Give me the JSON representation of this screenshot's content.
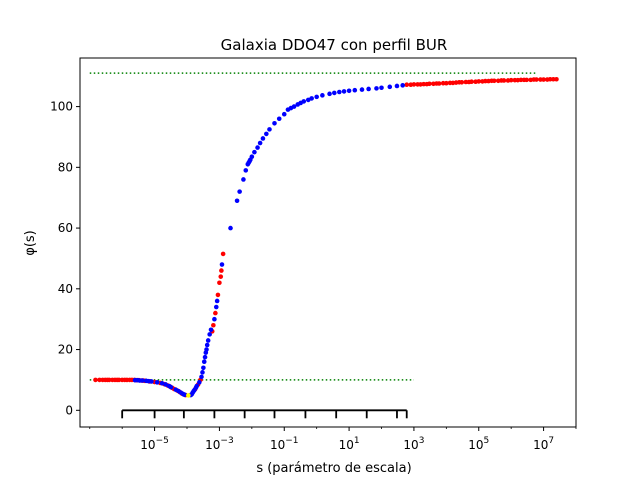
{
  "chart_data": {
    "type": "scatter",
    "title": "Galaxia DDO47 con perfil BUR",
    "xlabel": "s (parámetro de escala)",
    "ylabel": "φ(s)",
    "xscale": "log",
    "xlim": [
      5e-08,
      100000000.0
    ],
    "ylim": [
      -5.5,
      116
    ],
    "yticks": [
      0,
      20,
      40,
      60,
      80,
      100
    ],
    "xticks": [
      {
        "value": 1e-05,
        "base": "10",
        "exp": "−5"
      },
      {
        "value": 0.001,
        "base": "10",
        "exp": "−3"
      },
      {
        "value": 0.1,
        "base": "10",
        "exp": "−1"
      },
      {
        "value": 10.0,
        "base": "10",
        "exp": "1"
      },
      {
        "value": 1000.0,
        "base": "10",
        "exp": "3"
      },
      {
        "value": 100000.0,
        "base": "10",
        "exp": "5"
      },
      {
        "value": 10000000.0,
        "base": "10",
        "exp": "7"
      }
    ],
    "grid": false,
    "reference_lines": [
      {
        "y": 111,
        "x_from": 1e-07,
        "x_to": 6000000.0,
        "style": "dotted",
        "color": "#008000"
      },
      {
        "y": 10,
        "x_from": 1e-07,
        "x_to": 1000.0,
        "style": "dotted",
        "color": "#008000"
      }
    ],
    "bracket": {
      "y": 0,
      "x_from": 1e-06,
      "x_to": 600.0,
      "ticks": [
        1e-06,
        1e-05,
        8e-05,
        0.0007,
        0.006,
        0.05,
        0.45,
        4,
        35.0,
        300.0,
        600.0
      ],
      "color": "#000000"
    },
    "series": [
      {
        "color": "#ff0000",
        "points": [
          [
            1.5e-07,
            10
          ],
          [
            2e-07,
            10
          ],
          [
            2.5e-07,
            10
          ],
          [
            3e-07,
            10
          ],
          [
            3.5e-07,
            10
          ],
          [
            4e-07,
            10
          ],
          [
            5e-07,
            10
          ],
          [
            6e-07,
            10
          ],
          [
            7e-07,
            10
          ],
          [
            8e-07,
            10
          ],
          [
            1e-06,
            10
          ],
          [
            1.2e-06,
            10
          ],
          [
            1.4e-06,
            10
          ],
          [
            1.7e-06,
            10
          ],
          [
            2e-06,
            10
          ],
          [
            2.4e-06,
            10
          ],
          [
            2.8e-06,
            9.9
          ],
          [
            3.3e-06,
            9.9
          ],
          [
            4e-06,
            9.8
          ],
          [
            4.5e-06,
            9.8
          ],
          [
            5e-06,
            9.7
          ],
          [
            7e-06,
            9.5
          ],
          [
            1e-05,
            9.3
          ],
          [
            1.5e-05,
            9.0
          ],
          [
            2e-05,
            8.6
          ],
          [
            2.5e-05,
            8.2
          ],
          [
            3e-05,
            7.8
          ],
          [
            3.5e-05,
            7.4
          ],
          [
            4e-05,
            7.0
          ],
          [
            5e-05,
            6.5
          ],
          [
            6e-05,
            6.0
          ],
          [
            7e-05,
            5.5
          ],
          [
            9e-05,
            5.0
          ],
          [
            0.00018,
            7.0
          ],
          [
            0.00022,
            8.5
          ],
          [
            0.00026,
            10.0
          ],
          [
            0.0006,
            26
          ],
          [
            0.00065,
            28
          ],
          [
            0.00075,
            32
          ],
          [
            0.0009,
            38
          ],
          [
            0.001,
            42
          ],
          [
            0.0011,
            44
          ],
          [
            0.00115,
            46
          ],
          [
            0.0013,
            51.5
          ],
          [
            600.0,
            107.2
          ],
          [
            800.0,
            107.2
          ],
          [
            1000.0,
            107.3
          ],
          [
            1300.0,
            107.3
          ],
          [
            1600.0,
            107.3
          ],
          [
            2000.0,
            107.4
          ],
          [
            2500.0,
            107.4
          ],
          [
            3000.0,
            107.5
          ],
          [
            4000.0,
            107.5
          ],
          [
            5000.0,
            107.6
          ],
          [
            6000.0,
            107.6
          ],
          [
            8000.0,
            107.7
          ],
          [
            10000.0,
            107.7
          ],
          [
            13000.0,
            107.8
          ],
          [
            16000.0,
            107.8
          ],
          [
            20000.0,
            107.9
          ],
          [
            25000.0,
            108.0
          ],
          [
            30000.0,
            108.0
          ],
          [
            40000.0,
            108.1
          ],
          [
            50000.0,
            108.1
          ],
          [
            60000.0,
            108.2
          ],
          [
            80000.0,
            108.2
          ],
          [
            100000.0,
            108.3
          ],
          [
            130000.0,
            108.3
          ],
          [
            160000.0,
            108.4
          ],
          [
            200000.0,
            108.4
          ],
          [
            250000.0,
            108.5
          ],
          [
            300000.0,
            108.5
          ],
          [
            400000.0,
            108.5
          ],
          [
            500000.0,
            108.6
          ],
          [
            600000.0,
            108.6
          ],
          [
            800000.0,
            108.6
          ],
          [
            1000000.0,
            108.7
          ],
          [
            1300000.0,
            108.7
          ],
          [
            1600000.0,
            108.7
          ],
          [
            2000000.0,
            108.8
          ],
          [
            2500000.0,
            108.8
          ],
          [
            3000000.0,
            108.8
          ],
          [
            4000000.0,
            108.8
          ],
          [
            5000000.0,
            108.9
          ],
          [
            6000000.0,
            108.9
          ],
          [
            8000000.0,
            108.9
          ],
          [
            10000000.0,
            108.9
          ],
          [
            13000000.0,
            108.9
          ],
          [
            16000000.0,
            109.0
          ],
          [
            20000000.0,
            109.0
          ],
          [
            25000000.0,
            109.0
          ]
        ]
      },
      {
        "color": "#0000ff",
        "points": [
          [
            2.5e-06,
            9.9
          ],
          [
            3e-06,
            9.9
          ],
          [
            3.5e-06,
            9.8
          ],
          [
            4.2e-06,
            9.8
          ],
          [
            5.5e-06,
            9.7
          ],
          [
            6.5e-06,
            9.6
          ],
          [
            8e-06,
            9.5
          ],
          [
            1.2e-05,
            9.2
          ],
          [
            1.7e-05,
            8.9
          ],
          [
            2.2e-05,
            8.5
          ],
          [
            2.8e-05,
            8.0
          ],
          [
            3.2e-05,
            7.6
          ],
          [
            4.5e-05,
            6.8
          ],
          [
            5.5e-05,
            6.3
          ],
          [
            6.5e-05,
            5.8
          ],
          [
            7.5e-05,
            5.4
          ],
          [
            8e-05,
            5.2
          ],
          [
            8.5e-05,
            5.1
          ],
          [
            0.00013,
            5.0
          ],
          [
            0.00014,
            5.3
          ],
          [
            0.00015,
            5.8
          ],
          [
            0.00016,
            6.3
          ],
          [
            0.00017,
            6.7
          ],
          [
            0.00019,
            7.5
          ],
          [
            0.0002,
            8.0
          ],
          [
            0.00024,
            9.2
          ],
          [
            0.00028,
            11
          ],
          [
            0.0003,
            12.5
          ],
          [
            0.00032,
            14
          ],
          [
            0.00034,
            16
          ],
          [
            0.00036,
            17.5
          ],
          [
            0.00038,
            19
          ],
          [
            0.0004,
            20
          ],
          [
            0.00042,
            21.5
          ],
          [
            0.00045,
            23
          ],
          [
            0.0005,
            25
          ],
          [
            0.00055,
            26.5
          ],
          [
            0.0007,
            30
          ],
          [
            0.0008,
            34
          ],
          [
            0.00085,
            36
          ],
          [
            0.0012,
            48
          ],
          [
            0.0022,
            60
          ],
          [
            0.0035,
            69
          ],
          [
            0.0042,
            72
          ],
          [
            0.0055,
            76
          ],
          [
            0.0065,
            79
          ],
          [
            0.0075,
            81
          ],
          [
            0.008,
            81.5
          ],
          [
            0.0085,
            82
          ],
          [
            0.009,
            82.5
          ],
          [
            0.01,
            83.5
          ],
          [
            0.012,
            85
          ],
          [
            0.015,
            86.5
          ],
          [
            0.018,
            88
          ],
          [
            0.022,
            89.5
          ],
          [
            0.028,
            91
          ],
          [
            0.035,
            92.5
          ],
          [
            0.05,
            94.5
          ],
          [
            0.07,
            96
          ],
          [
            0.1,
            97.5
          ],
          [
            0.13,
            99
          ],
          [
            0.16,
            99.5
          ],
          [
            0.2,
            100
          ],
          [
            0.26,
            100.7
          ],
          [
            0.32,
            101.2
          ],
          [
            0.4,
            101.7
          ],
          [
            0.55,
            102.2
          ],
          [
            0.7,
            102.7
          ],
          [
            1,
            103.2
          ],
          [
            1.5,
            103.7
          ],
          [
            2.5,
            104.2
          ],
          [
            3.5,
            104.5
          ],
          [
            5,
            104.8
          ],
          [
            7,
            105.0
          ],
          [
            10.0,
            105.2
          ],
          [
            15.0,
            105.4
          ],
          [
            25.0,
            105.6
          ],
          [
            40.0,
            105.8
          ],
          [
            70.0,
            106.0
          ],
          [
            100.0,
            106.2
          ],
          [
            180.0,
            106.5
          ],
          [
            300.0,
            106.8
          ],
          [
            450.0,
            107.0
          ]
        ]
      },
      {
        "color": "#ffff00",
        "points": [
          [
            0.00011,
            4.9
          ]
        ]
      }
    ]
  }
}
